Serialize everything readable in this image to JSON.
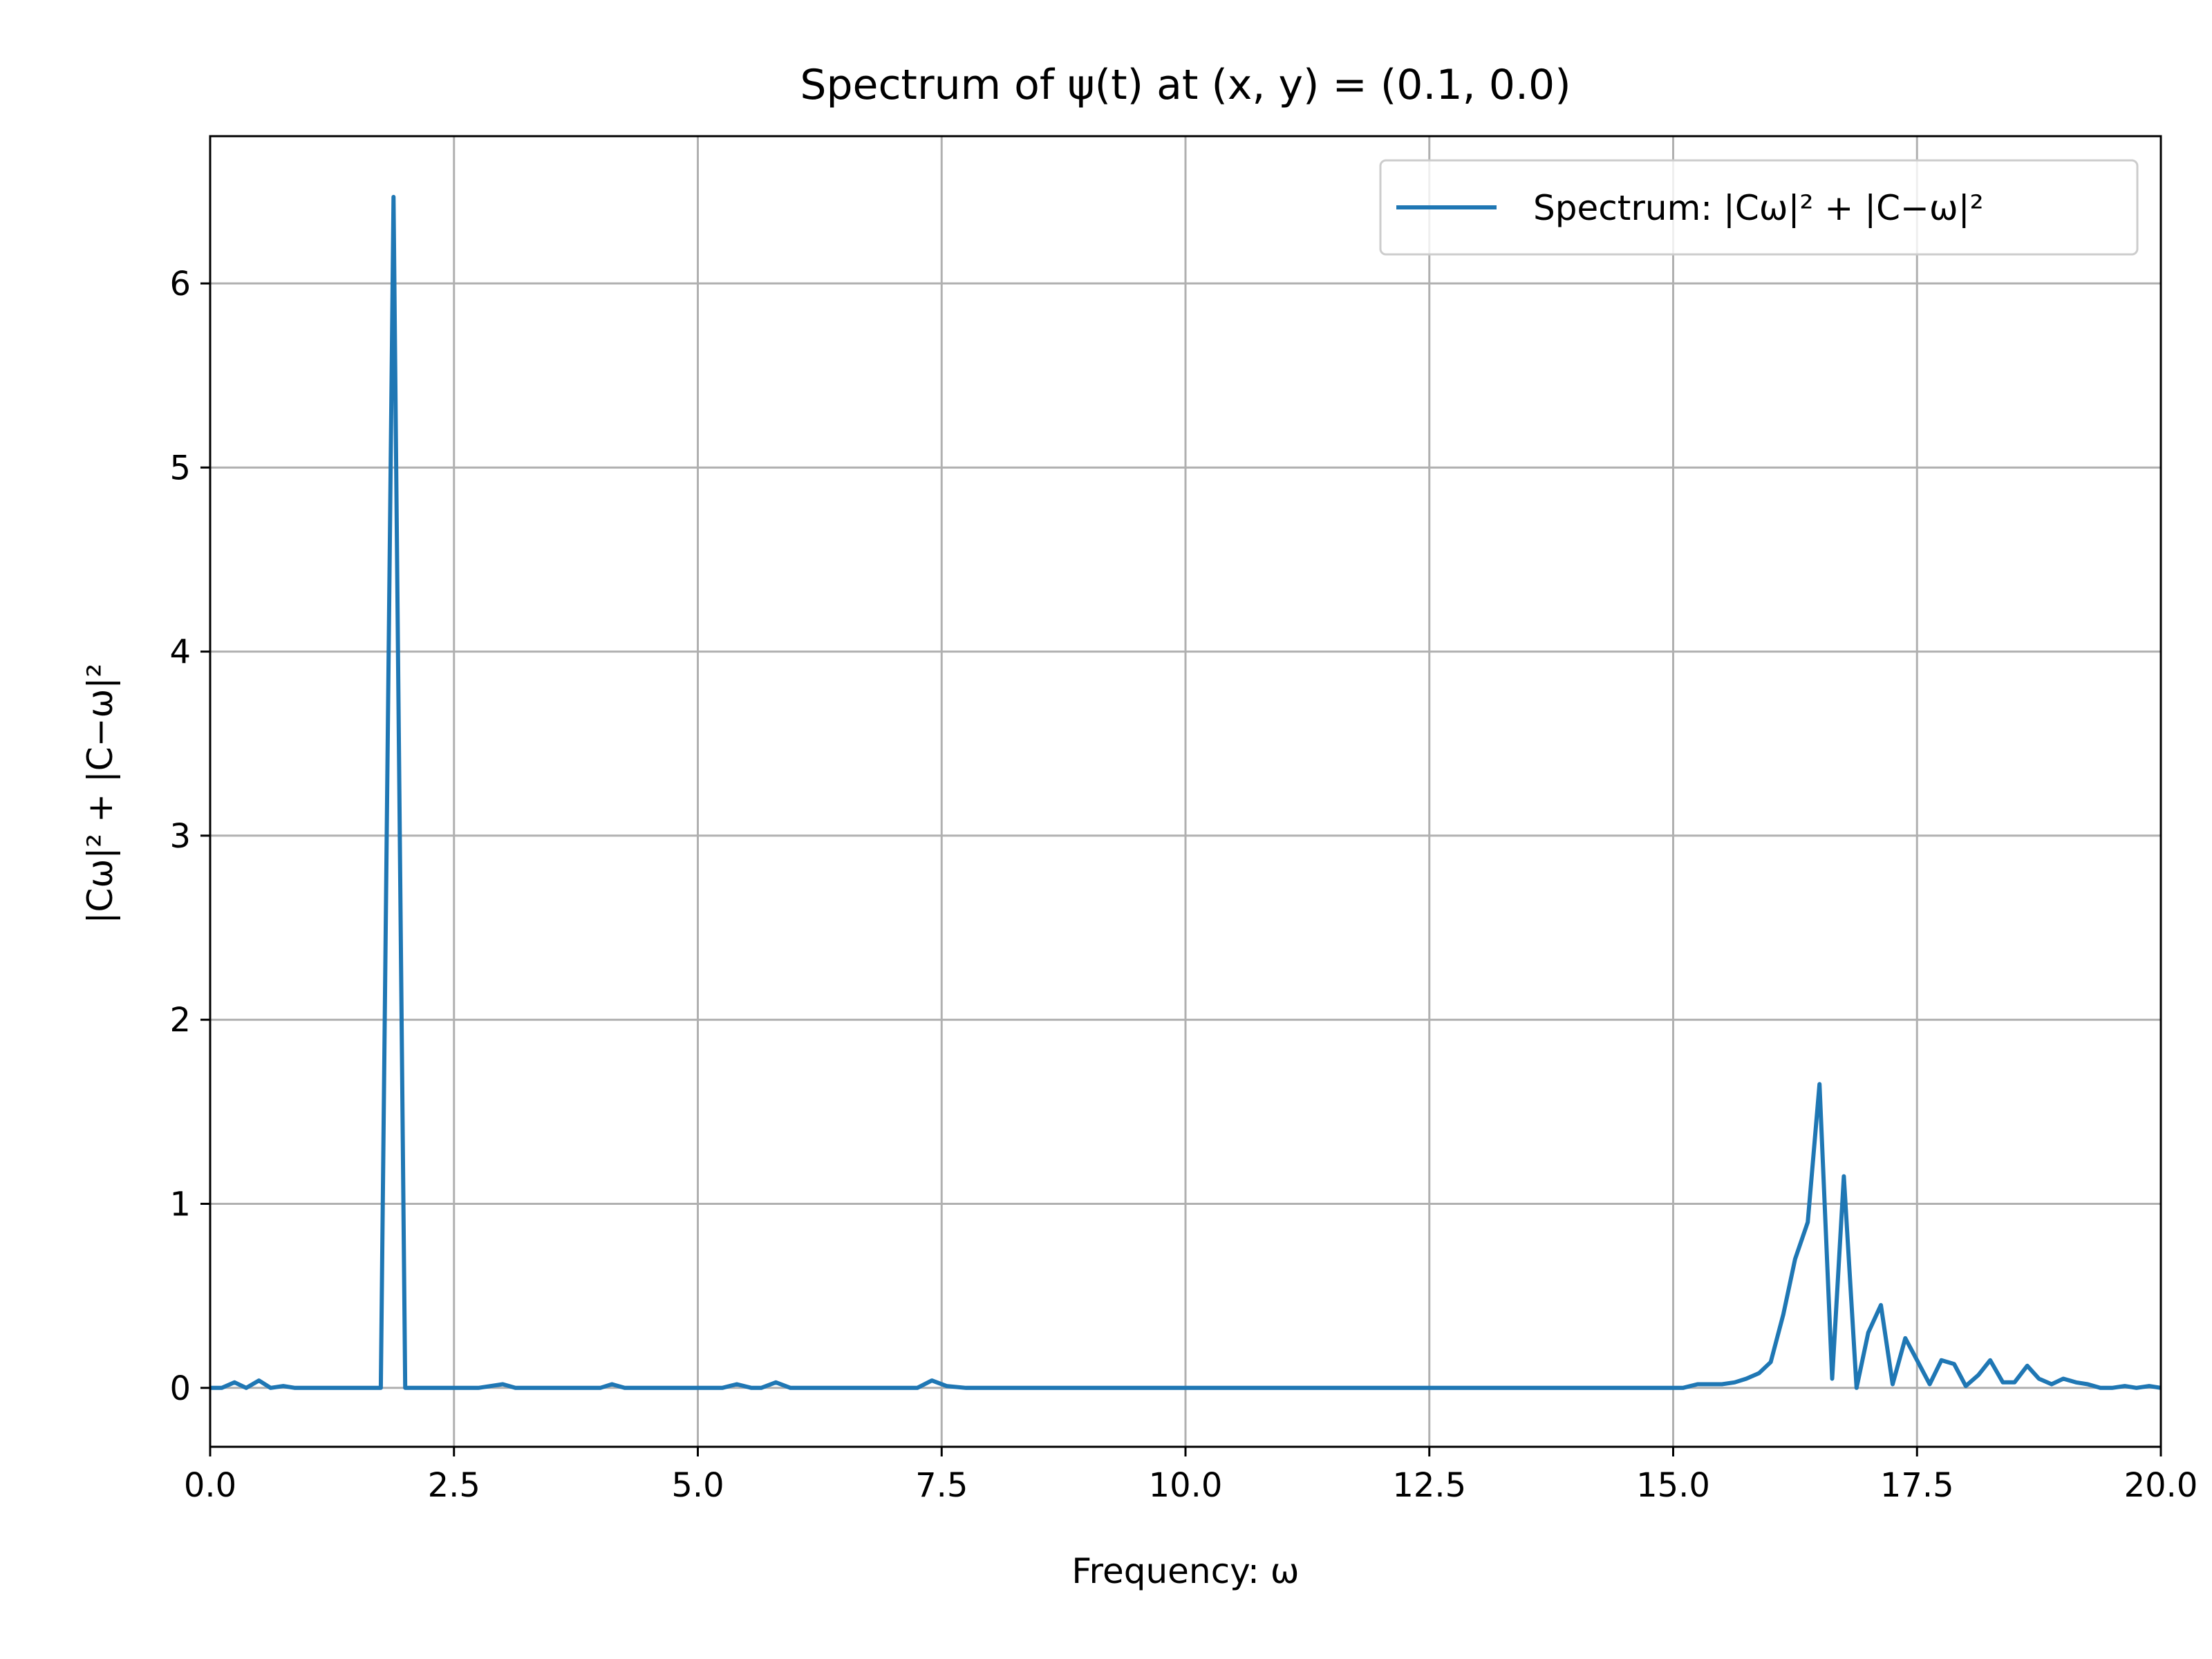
{
  "chart_data": {
    "type": "line",
    "title": "Spectrum of ψ(t) at (x, y) = (0.1, 0.0)",
    "xlabel": "Frequency: ω",
    "ylabel": "|Cω|² + |C−ω|²",
    "xlim": [
      0,
      20
    ],
    "ylim": [
      -0.32,
      6.8
    ],
    "grid": true,
    "legend_position": "top-right",
    "line_color": "#1f77b4",
    "x_ticks": [
      "0.0",
      "2.5",
      "5.0",
      "7.5",
      "10.0",
      "12.5",
      "15.0",
      "17.5",
      "20.0"
    ],
    "y_ticks": [
      "0",
      "1",
      "2",
      "3",
      "4",
      "5",
      "6"
    ],
    "series": [
      {
        "name": "Spectrum: |Cω|² + |C−ω|²",
        "x": [
          0.0,
          0.12,
          0.25,
          0.37,
          0.5,
          0.62,
          0.75,
          0.87,
          1.0,
          1.25,
          1.5,
          1.63,
          1.75,
          1.88,
          2.0,
          2.13,
          2.5,
          2.75,
          3.0,
          3.13,
          3.5,
          3.75,
          4.0,
          4.12,
          4.25,
          4.5,
          5.0,
          5.25,
          5.4,
          5.55,
          5.65,
          5.8,
          5.95,
          6.25,
          6.5,
          7.0,
          7.25,
          7.4,
          7.55,
          7.75,
          8.0,
          8.5,
          9.0,
          9.25,
          9.5,
          10.0,
          10.5,
          11.0,
          11.25,
          11.5,
          12.0,
          12.5,
          13.0,
          13.25,
          13.5,
          13.75,
          14.0,
          14.25,
          14.5,
          15.0,
          15.1,
          15.25,
          15.5,
          15.63,
          15.75,
          15.88,
          16.0,
          16.13,
          16.25,
          16.38,
          16.5,
          16.63,
          16.75,
          16.88,
          17.0,
          17.13,
          17.25,
          17.38,
          17.5,
          17.63,
          17.75,
          17.88,
          18.0,
          18.13,
          18.25,
          18.38,
          18.5,
          18.63,
          18.75,
          18.88,
          19.0,
          19.13,
          19.25,
          19.38,
          19.5,
          19.63,
          19.75,
          19.88,
          20.0
        ],
        "y": [
          0.0,
          0.0,
          0.03,
          0.0,
          0.04,
          0.0,
          0.01,
          0.0,
          0.0,
          0.0,
          0.0,
          0.0,
          0.0,
          6.47,
          0.0,
          0.0,
          0.0,
          0.0,
          0.02,
          0.0,
          0.0,
          0.0,
          0.0,
          0.02,
          0.0,
          0.0,
          0.0,
          0.0,
          0.02,
          0.0,
          0.0,
          0.03,
          0.0,
          0.0,
          0.0,
          0.0,
          0.0,
          0.04,
          0.01,
          0.0,
          0.0,
          0.0,
          0.0,
          0.0,
          0.0,
          0.0,
          0.0,
          0.0,
          0.0,
          0.0,
          0.0,
          0.0,
          0.0,
          0.0,
          0.0,
          0.0,
          0.0,
          0.0,
          0.0,
          0.0,
          0.0,
          0.02,
          0.02,
          0.03,
          0.05,
          0.08,
          0.14,
          0.4,
          0.7,
          0.9,
          1.65,
          0.05,
          1.15,
          0.0,
          0.3,
          0.45,
          0.02,
          0.27,
          0.15,
          0.02,
          0.15,
          0.13,
          0.01,
          0.07,
          0.15,
          0.03,
          0.03,
          0.12,
          0.05,
          0.02,
          0.05,
          0.03,
          0.02,
          0.0,
          0.0,
          0.01,
          0.0,
          0.01,
          0.0
        ]
      }
    ]
  }
}
